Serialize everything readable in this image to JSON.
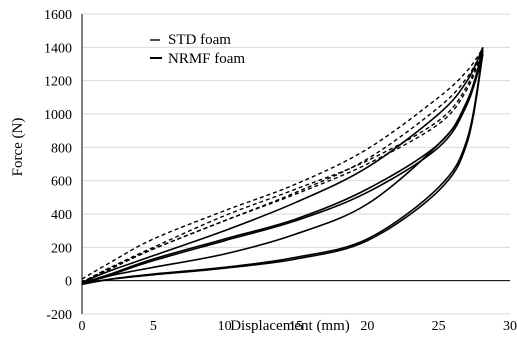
{
  "chart_data": {
    "type": "line",
    "title": "",
    "xlabel": "Displacement (mm)",
    "ylabel": "Force (N)",
    "xlim": [
      0,
      30
    ],
    "ylim": [
      -200,
      1600
    ],
    "x_ticks": [
      "0",
      "5",
      "10",
      "15",
      "20",
      "25",
      "30"
    ],
    "y_ticks": [
      "-200",
      "0",
      "200",
      "400",
      "600",
      "800",
      "1000",
      "1200",
      "1400",
      "1600"
    ],
    "grid": "horizontal",
    "legend": "top-left",
    "series": [
      {
        "name": "STD foam",
        "style": "dashed",
        "loops": [
          {
            "loading": [
              [
                0,
                10
              ],
              [
                2,
                110
              ],
              [
                5,
                250
              ],
              [
                10,
                420
              ],
              [
                15,
                580
              ],
              [
                20,
                790
              ],
              [
                25,
                1100
              ],
              [
                27,
                1260
              ],
              [
                28.1,
                1395
              ]
            ],
            "unloading": [
              [
                28.1,
                1395
              ],
              [
                27,
                1170
              ],
              [
                25,
                960
              ],
              [
                20,
                720
              ],
              [
                15,
                550
              ],
              [
                10,
                390
              ],
              [
                5,
                200
              ],
              [
                2,
                80
              ],
              [
                0,
                -10
              ]
            ]
          },
          {
            "loading": [
              [
                0,
                -10
              ],
              [
                2,
                75
              ],
              [
                5,
                190
              ],
              [
                10,
                360
              ],
              [
                15,
                530
              ],
              [
                20,
                730
              ],
              [
                25,
                1040
              ],
              [
                27,
                1220
              ],
              [
                28.1,
                1390
              ]
            ],
            "unloading": [
              [
                28.1,
                1390
              ],
              [
                27,
                1150
              ],
              [
                25,
                940
              ],
              [
                20,
                700
              ],
              [
                15,
                520
              ],
              [
                10,
                360
              ],
              [
                5,
                190
              ],
              [
                2,
                70
              ],
              [
                0,
                -15
              ]
            ]
          }
        ]
      },
      {
        "name": "NRMF foam",
        "style": "solid",
        "loops": [
          {
            "loading": [
              [
                0,
                -10
              ],
              [
                2,
                60
              ],
              [
                5,
                150
              ],
              [
                10,
                300
              ],
              [
                15,
                470
              ],
              [
                20,
                680
              ],
              [
                25,
                1000
              ],
              [
                27,
                1200
              ],
              [
                28.1,
                1400
              ]
            ],
            "unloading": [
              [
                28.1,
                1400
              ],
              [
                27,
                1060
              ],
              [
                25,
                820
              ],
              [
                20,
                460
              ],
              [
                15,
                280
              ],
              [
                10,
                160
              ],
              [
                5,
                80
              ],
              [
                2,
                30
              ],
              [
                0,
                -20
              ]
            ]
          },
          {
            "loading": [
              [
                0,
                -15
              ],
              [
                2,
                40
              ],
              [
                5,
                130
              ],
              [
                10,
                250
              ],
              [
                15,
                370
              ],
              [
                20,
                550
              ],
              [
                25,
                820
              ],
              [
                27,
                1080
              ],
              [
                28.1,
                1380
              ]
            ],
            "unloading": [
              [
                28.1,
                1380
              ],
              [
                27,
                850
              ],
              [
                25,
                560
              ],
              [
                20,
                250
              ],
              [
                15,
                140
              ],
              [
                10,
                80
              ],
              [
                5,
                40
              ],
              [
                2,
                10
              ],
              [
                0,
                -20
              ]
            ]
          },
          {
            "loading": [
              [
                0,
                -18
              ],
              [
                2,
                35
              ],
              [
                5,
                120
              ],
              [
                10,
                240
              ],
              [
                15,
                360
              ],
              [
                20,
                530
              ],
              [
                25,
                800
              ],
              [
                27,
                1060
              ],
              [
                28.1,
                1360
              ]
            ],
            "unloading": [
              [
                28.1,
                1360
              ],
              [
                27,
                830
              ],
              [
                25,
                540
              ],
              [
                20,
                240
              ],
              [
                15,
                130
              ],
              [
                10,
                75
              ],
              [
                5,
                35
              ],
              [
                2,
                8
              ],
              [
                0,
                -22
              ]
            ]
          }
        ]
      }
    ]
  }
}
